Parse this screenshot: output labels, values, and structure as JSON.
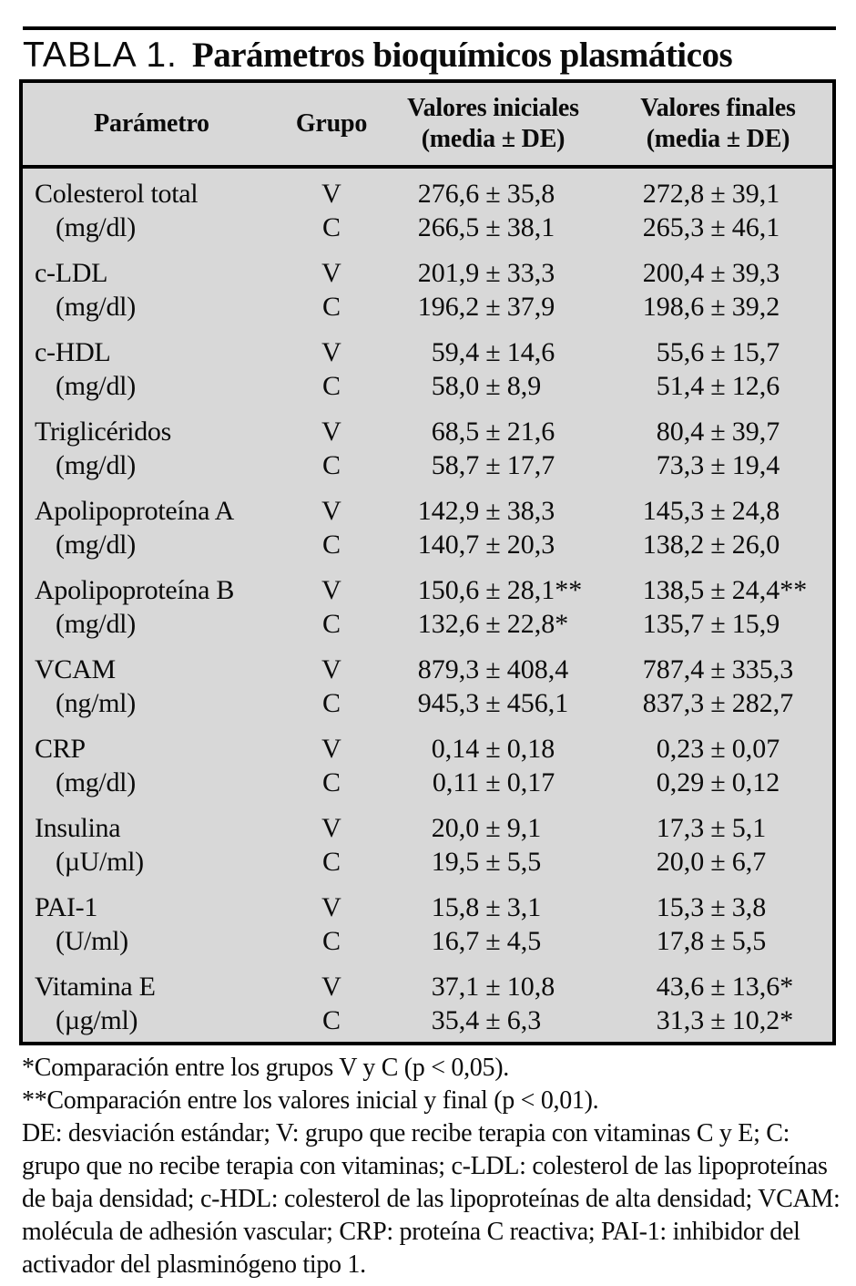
{
  "title": {
    "label": "TABLA 1.",
    "text": "Parámetros bioquímicos plasmáticos"
  },
  "table": {
    "headers": {
      "parameter": "Parámetro",
      "group": "Grupo",
      "initial": "Valores iniciales",
      "initial_sub": "(media ± DE)",
      "final": "Valores finales",
      "final_sub": "(media ± DE)"
    },
    "rows": [
      {
        "parameter": "Colesterol total",
        "unit": "(mg/dl)",
        "groups": [
          {
            "label": "V",
            "initial": "276,6 ± 35,8",
            "final": "272,8 ± 39,1"
          },
          {
            "label": "C",
            "initial": "266,5 ± 38,1",
            "final": "265,3 ± 46,1"
          }
        ]
      },
      {
        "parameter": "c-LDL",
        "unit": "(mg/dl)",
        "groups": [
          {
            "label": "V",
            "initial": "201,9 ± 33,3",
            "final": "200,4 ± 39,3"
          },
          {
            "label": "C",
            "initial": "196,2 ± 37,9",
            "final": "198,6 ± 39,2"
          }
        ]
      },
      {
        "parameter": "c-HDL",
        "unit": "(mg/dl)",
        "groups": [
          {
            "label": "V",
            "initial": "59,4 ± 14,6",
            "final": "55,6 ± 15,7"
          },
          {
            "label": "C",
            "initial": "58,0 ± 8,9",
            "final": "51,4 ± 12,6"
          }
        ]
      },
      {
        "parameter": "Triglicéridos",
        "unit": "(mg/dl)",
        "groups": [
          {
            "label": "V",
            "initial": "68,5 ± 21,6",
            "final": "80,4 ± 39,7"
          },
          {
            "label": "C",
            "initial": "58,7 ± 17,7",
            "final": "73,3 ± 19,4"
          }
        ]
      },
      {
        "parameter": "Apolipoproteína A",
        "unit": "(mg/dl)",
        "groups": [
          {
            "label": "V",
            "initial": "142,9 ± 38,3",
            "final": "145,3 ± 24,8"
          },
          {
            "label": "C",
            "initial": "140,7 ± 20,3",
            "final": "138,2 ± 26,0"
          }
        ]
      },
      {
        "parameter": "Apolipoproteína B",
        "unit": "(mg/dl)",
        "groups": [
          {
            "label": "V",
            "initial": "150,6 ± 28,1**",
            "final": "138,5 ± 24,4**"
          },
          {
            "label": "C",
            "initial": "132,6 ± 22,8*",
            "final": "135,7 ± 15,9"
          }
        ]
      },
      {
        "parameter": "VCAM",
        "unit": "(ng/ml)",
        "groups": [
          {
            "label": "V",
            "initial": "879,3 ± 408,4",
            "final": "787,4 ± 335,3"
          },
          {
            "label": "C",
            "initial": "945,3 ± 456,1",
            "final": "837,3 ± 282,7"
          }
        ]
      },
      {
        "parameter": "CRP",
        "unit": "(mg/dl)",
        "groups": [
          {
            "label": "V",
            "initial": "0,14 ± 0,18",
            "final": "0,23 ± 0,07"
          },
          {
            "label": "C",
            "initial": "0,11 ± 0,17",
            "final": "0,29 ± 0,12"
          }
        ]
      },
      {
        "parameter": "Insulina",
        "unit": "(µU/ml)",
        "groups": [
          {
            "label": "V",
            "initial": "20,0 ± 9,1",
            "final": "17,3 ± 5,1"
          },
          {
            "label": "C",
            "initial": "19,5 ± 5,5",
            "final": "20,0 ± 6,7"
          }
        ]
      },
      {
        "parameter": "PAI-1",
        "unit": "(U/ml)",
        "groups": [
          {
            "label": "V",
            "initial": "15,8 ± 3,1",
            "final": "15,3 ± 3,8"
          },
          {
            "label": "C",
            "initial": "16,7 ± 4,5",
            "final": "17,8 ± 5,5"
          }
        ]
      },
      {
        "parameter": "Vitamina E",
        "unit": "(µg/ml)",
        "groups": [
          {
            "label": "V",
            "initial": "37,1 ± 10,8",
            "final": "43,6 ± 13,6*"
          },
          {
            "label": "C",
            "initial": "35,4 ± 6,3",
            "final": "31,3 ± 10,2*"
          }
        ]
      }
    ]
  },
  "footnotes": [
    "*Comparación entre los grupos V y C (p < 0,05).",
    "**Comparación entre los valores inicial y final (p < 0,01).",
    "DE: desviación estándar; V: grupo que recibe terapia con vitaminas C y E; C: grupo que no recibe terapia con vitaminas; c-LDL: colesterol de las lipoproteínas de baja densidad; c-HDL: colesterol de las lipoproteínas de alta densidad; VCAM: molécula de adhesión vascular; CRP: proteína C reactiva; PAI-1: inhibidor del activador del plasminógeno tipo 1."
  ],
  "colors": {
    "table_background": "#d8d8d8",
    "border": "#000000",
    "text": "#0b0b0b",
    "page_background": "#ffffff"
  }
}
